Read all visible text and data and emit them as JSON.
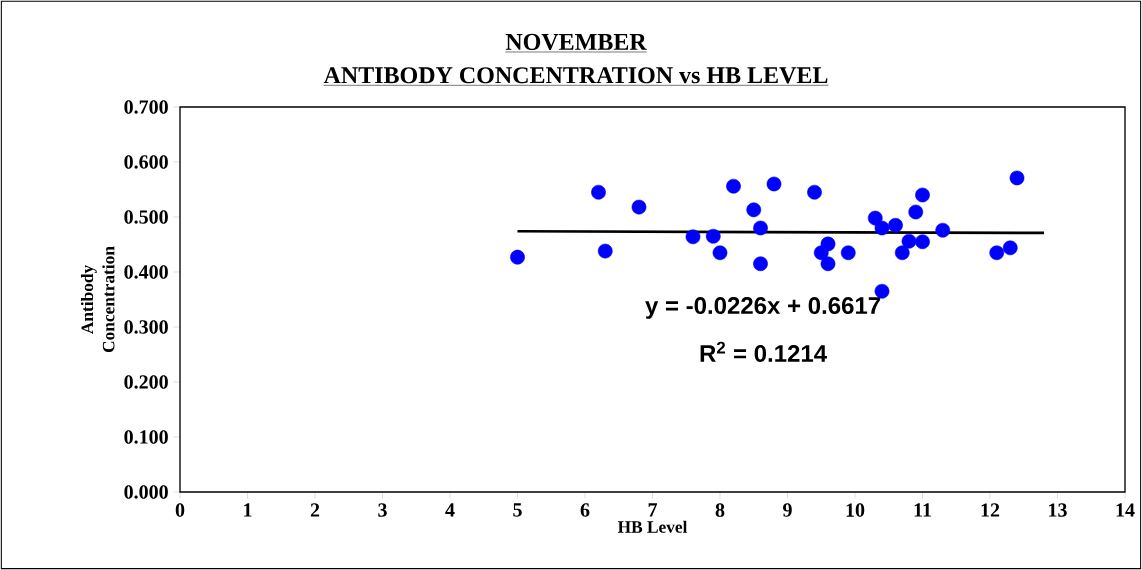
{
  "chart_data": {
    "type": "scatter",
    "title": "NOVEMBER",
    "subtitle": "ANTIBODY CONCENTRATION vs HB LEVEL",
    "xlabel": "HB Level",
    "ylabel": "Antibody Concentration",
    "xlim": [
      0,
      14
    ],
    "xticks": [
      0,
      1,
      2,
      3,
      4,
      5,
      6,
      7,
      8,
      9,
      10,
      11,
      12,
      13,
      14
    ],
    "ylim": [
      0,
      0.7
    ],
    "yticks": [
      {
        "value": 0,
        "label": "0.000"
      },
      {
        "value": 0.1,
        "label": "0.100"
      },
      {
        "value": 0.2,
        "label": "0.200"
      },
      {
        "value": 0.3,
        "label": "0.300"
      },
      {
        "value": 0.4,
        "label": "0.400"
      },
      {
        "value": 0.5,
        "label": "0.500"
      },
      {
        "value": 0.6,
        "label": "0.600"
      },
      {
        "value": 0.7,
        "label": "0.700"
      }
    ],
    "grid": false,
    "series": [
      {
        "color": "#0000ff",
        "marker": "circle",
        "x": [
          5.0,
          6.2,
          6.3,
          6.8,
          7.6,
          7.9,
          8.0,
          8.2,
          8.5,
          8.6,
          8.6,
          8.8,
          9.4,
          9.5,
          9.6,
          9.6,
          9.9,
          10.3,
          10.4,
          10.4,
          10.6,
          10.7,
          10.8,
          10.9,
          11.0,
          11.0,
          11.3,
          12.1,
          12.3,
          12.4
        ],
        "values": [
          0.427,
          0.545,
          0.438,
          0.518,
          0.464,
          0.465,
          0.435,
          0.556,
          0.513,
          0.48,
          0.415,
          0.56,
          0.545,
          0.435,
          0.451,
          0.415,
          0.435,
          0.498,
          0.48,
          0.365,
          0.485,
          0.435,
          0.456,
          0.509,
          0.54,
          0.455,
          0.476,
          0.435,
          0.444,
          0.571
        ]
      },
      {
        "type": "line",
        "color": "#000000",
        "marker": "none",
        "line_style": "solid",
        "x": [
          5.0,
          12.8
        ],
        "values": [
          0.474,
          0.471
        ]
      }
    ],
    "annotations": [
      "y = -0.0226x + 0.6617",
      "R$^{2}$ = 0.1214"
    ]
  }
}
